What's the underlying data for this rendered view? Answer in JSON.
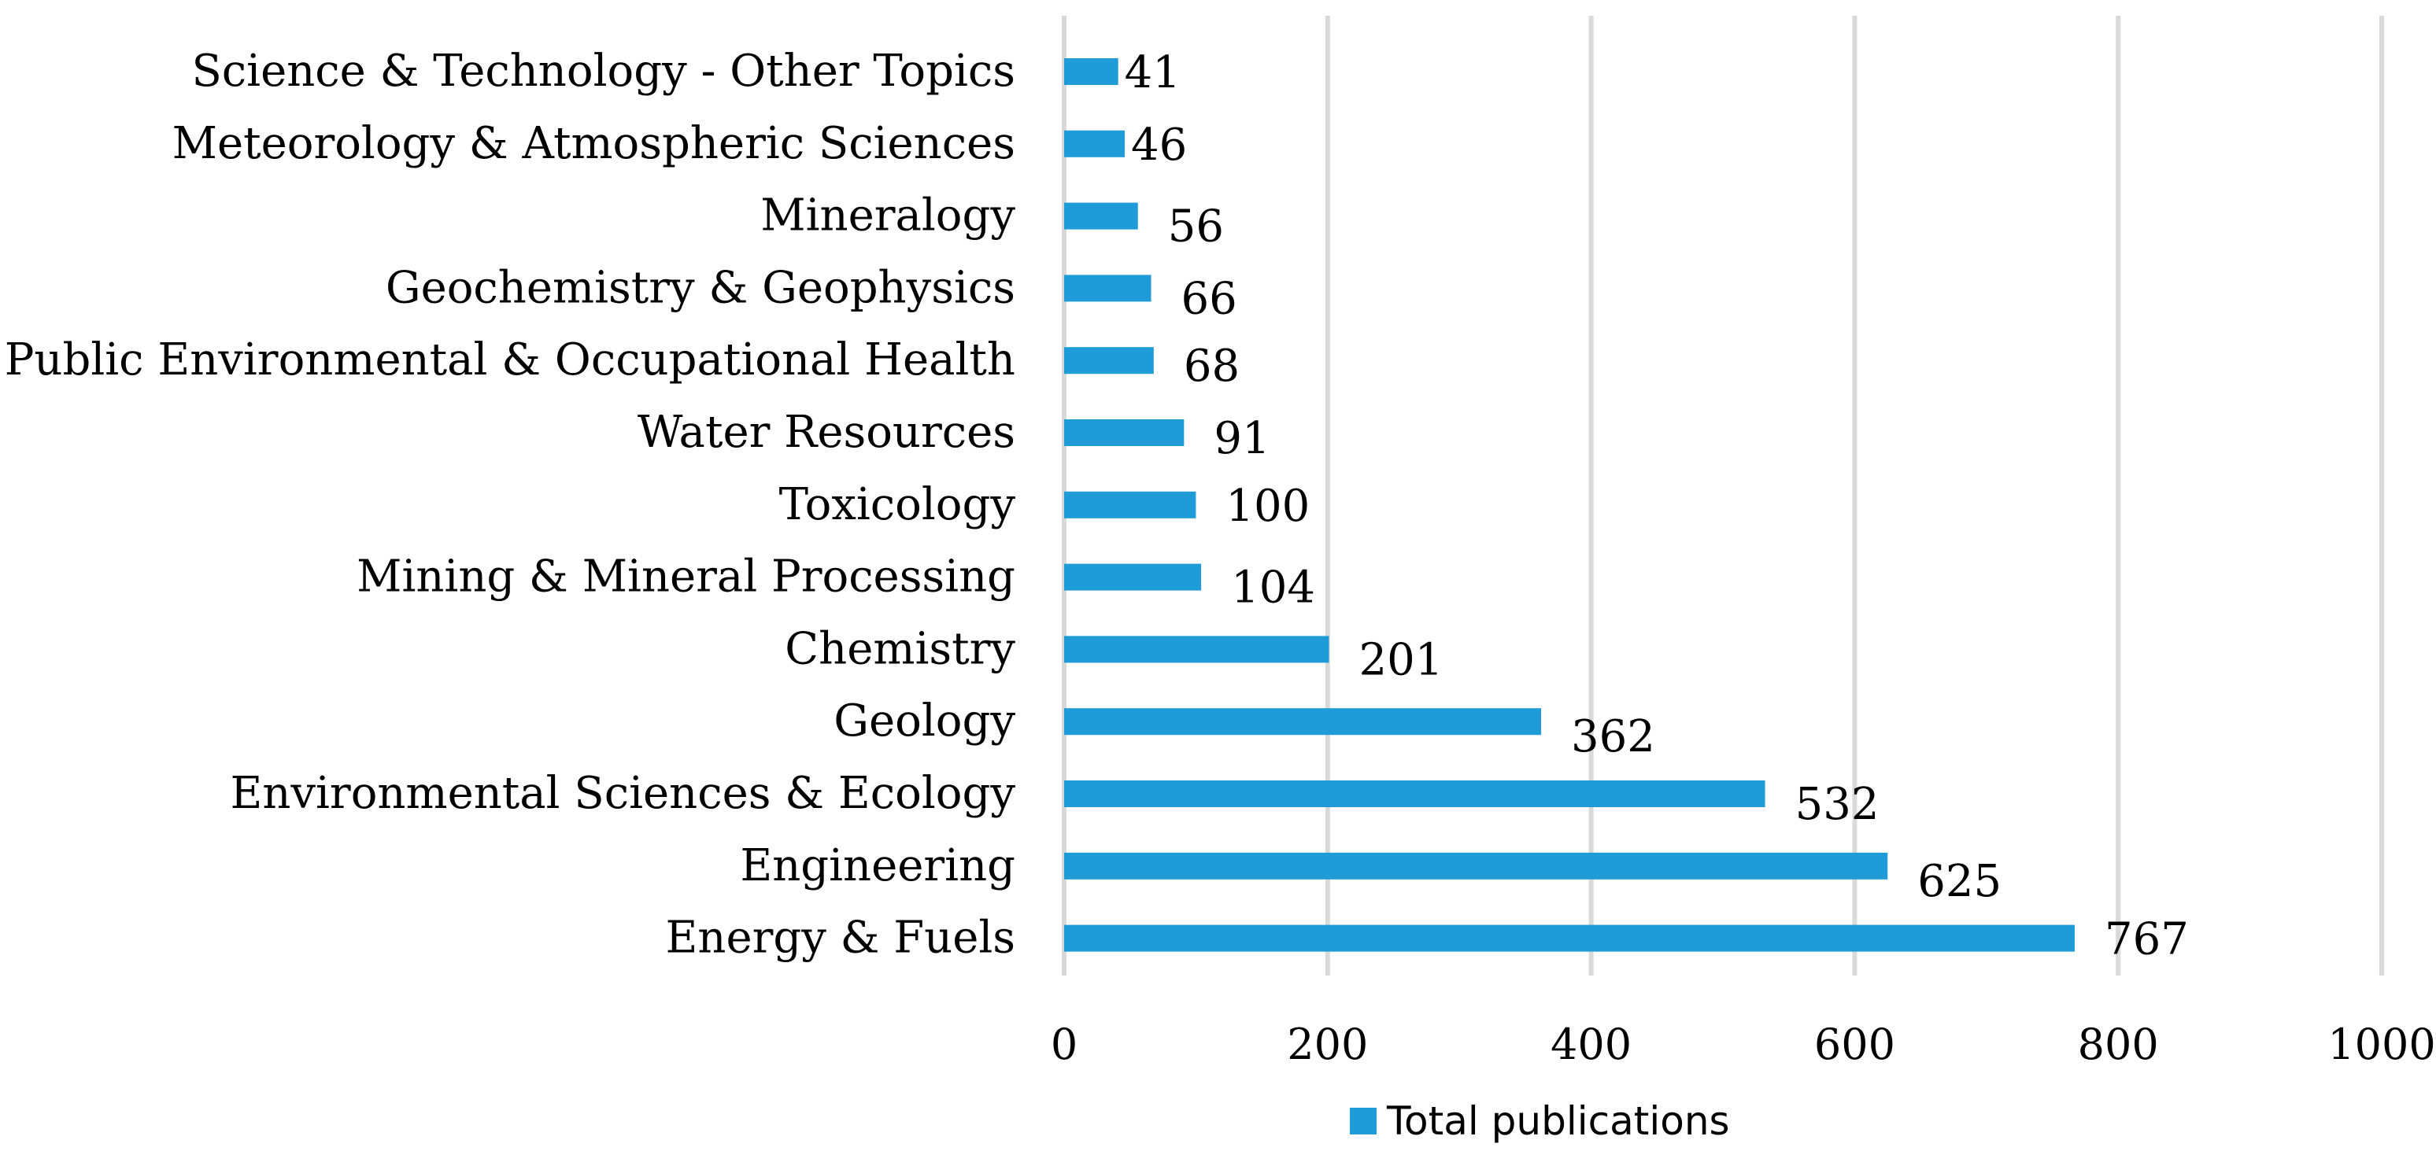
{
  "chart_data": {
    "type": "bar",
    "orientation": "horizontal",
    "title": "",
    "xlabel": "",
    "ylabel": "",
    "categories": [
      "Science & Technology - Other Topics",
      "Meteorology & Atmospheric Sciences",
      "Mineralogy",
      "Geochemistry & Geophysics",
      "Public Environmental & Occupational Health",
      "Water Resources",
      "Toxicology",
      "Mining & Mineral Processing",
      "Chemistry",
      "Geology",
      "Environmental Sciences & Ecology",
      "Engineering",
      "Energy & Fuels"
    ],
    "series": [
      {
        "name": "Total publications",
        "color": "#1f9bd7",
        "values": [
          41,
          46,
          56,
          66,
          68,
          91,
          100,
          104,
          201,
          362,
          532,
          625,
          767
        ]
      }
    ],
    "xlim": [
      0,
      1000
    ],
    "xticks": [
      "0",
      "200",
      "400",
      "600",
      "800",
      "1000"
    ],
    "xtick_values": [
      0,
      200,
      400,
      600,
      800,
      1000
    ],
    "grid": true,
    "legend": {
      "position": "bottom",
      "entries": [
        "Total publications"
      ]
    }
  }
}
